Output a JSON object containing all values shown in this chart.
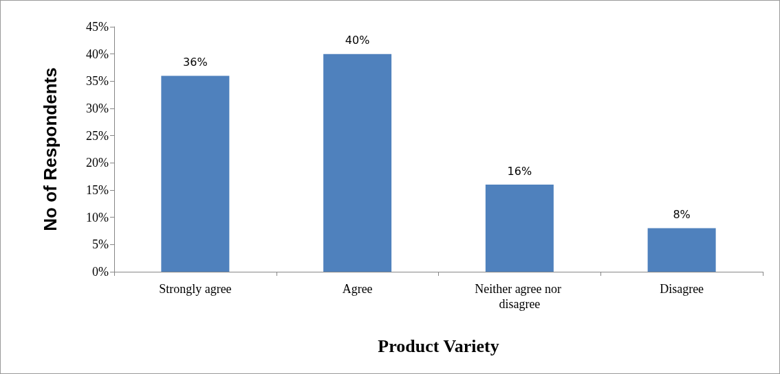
{
  "chart_data": {
    "type": "bar",
    "xlabel": "Product Variety",
    "ylabel": "No of Respondents",
    "categories": [
      "Strongly agree",
      "Agree",
      "Neither agree nor disagree",
      "Disagree"
    ],
    "values": [
      36,
      40,
      16,
      8
    ],
    "color": "#4f81bd",
    "value_labels": [
      "36%",
      "40%",
      "16%",
      "8%"
    ],
    "ylim": [
      0,
      45
    ],
    "yticks": [
      {
        "value": 0,
        "label": "0%"
      },
      {
        "value": 5,
        "label": "5%"
      },
      {
        "value": 10,
        "label": "10%"
      },
      {
        "value": 15,
        "label": "15%"
      },
      {
        "value": 20,
        "label": "20%"
      },
      {
        "value": 25,
        "label": "25%"
      },
      {
        "value": 30,
        "label": "30%"
      },
      {
        "value": 35,
        "label": "35%"
      },
      {
        "value": 40,
        "label": "40%"
      },
      {
        "value": 45,
        "label": "45%"
      }
    ],
    "grid": false
  }
}
